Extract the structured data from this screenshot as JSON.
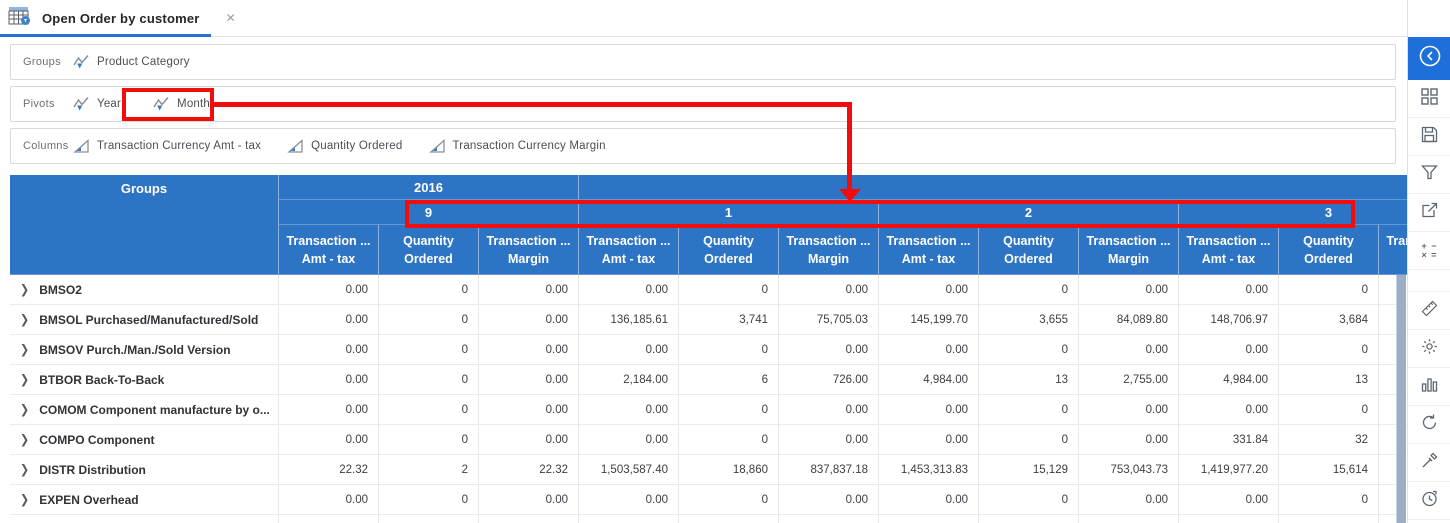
{
  "colors": {
    "header_blue": "#2e74c4",
    "active_blue": "#1e6fd9",
    "annotation_red": "#f20d0d",
    "scrollbar": "#9baec4"
  },
  "tab": {
    "title": "Open Order by customer",
    "close_glyph": "✕",
    "icon": "pivot-table-icon"
  },
  "panels": {
    "groups": {
      "label": "Groups",
      "chips": [
        {
          "label": "Product Category",
          "icon": "dimension-icon"
        }
      ]
    },
    "pivots": {
      "label": "Pivots",
      "chips": [
        {
          "label": "Year",
          "icon": "dimension-icon"
        },
        {
          "label": "Month",
          "icon": "dimension-icon",
          "highlighted": true
        }
      ]
    },
    "columns": {
      "label": "Columns",
      "chips": [
        {
          "label": "Transaction Currency Amt - tax",
          "icon": "measure-icon"
        },
        {
          "label": "Quantity Ordered",
          "icon": "measure-icon"
        },
        {
          "label": "Transaction Currency Margin",
          "icon": "measure-icon"
        }
      ]
    }
  },
  "table": {
    "groups_header": "Groups",
    "years": [
      {
        "label": "2016",
        "month_span": 1
      },
      {
        "label": "",
        "month_span": 3
      }
    ],
    "months": [
      "9",
      "1",
      "2",
      "3"
    ],
    "subcolumns": [
      {
        "line1": "Transaction ...",
        "line2": "Amt - tax"
      },
      {
        "line1": "Quantity",
        "line2": "Ordered"
      },
      {
        "line1": "Transaction ...",
        "line2": "Margin"
      }
    ],
    "rows": [
      {
        "name": "BMSO2",
        "values": [
          "0.00",
          "0",
          "0.00",
          "0.00",
          "0",
          "0.00",
          "0.00",
          "0",
          "0.00",
          "0.00",
          "0"
        ]
      },
      {
        "name": "BMSOL Purchased/Manufactured/Sold",
        "values": [
          "0.00",
          "0",
          "0.00",
          "136,185.61",
          "3,741",
          "75,705.03",
          "145,199.70",
          "3,655",
          "84,089.80",
          "148,706.97",
          "3,684"
        ]
      },
      {
        "name": "BMSOV Purch./Man./Sold Version",
        "values": [
          "0.00",
          "0",
          "0.00",
          "0.00",
          "0",
          "0.00",
          "0.00",
          "0",
          "0.00",
          "0.00",
          "0"
        ]
      },
      {
        "name": "BTBOR Back-To-Back",
        "values": [
          "0.00",
          "0",
          "0.00",
          "2,184.00",
          "6",
          "726.00",
          "4,984.00",
          "13",
          "2,755.00",
          "4,984.00",
          "13"
        ]
      },
      {
        "name": "COMOM Component manufacture by o...",
        "values": [
          "0.00",
          "0",
          "0.00",
          "0.00",
          "0",
          "0.00",
          "0.00",
          "0",
          "0.00",
          "0.00",
          "0"
        ]
      },
      {
        "name": "COMPO Component",
        "values": [
          "0.00",
          "0",
          "0.00",
          "0.00",
          "0",
          "0.00",
          "0.00",
          "0",
          "0.00",
          "331.84",
          "32"
        ]
      },
      {
        "name": "DISTR Distribution",
        "values": [
          "22.32",
          "2",
          "22.32",
          "1,503,587.40",
          "18,860",
          "837,837.18",
          "1,453,313.83",
          "15,129",
          "753,043.73",
          "1,419,977.20",
          "15,614"
        ]
      },
      {
        "name": "EXPEN Overhead",
        "values": [
          "0.00",
          "0",
          "0.00",
          "0.00",
          "0",
          "0.00",
          "0.00",
          "0",
          "0.00",
          "0.00",
          "0"
        ]
      }
    ],
    "expand_glyph": "❯"
  },
  "sidebar": {
    "items_group1": [
      {
        "icon": "chevron-left-circle-icon",
        "name": "collapse-panel",
        "active": true
      },
      {
        "icon": "grid-layout-icon",
        "name": "layouts"
      },
      {
        "icon": "save-icon",
        "name": "save"
      },
      {
        "icon": "filter-icon",
        "name": "filter"
      },
      {
        "icon": "share-icon",
        "name": "share"
      },
      {
        "icon": "calculator-icon",
        "name": "calculated-fields",
        "glyph_line1": "+ −",
        "glyph_line2": "× ="
      }
    ],
    "items_group2": [
      {
        "icon": "ruler-icon",
        "name": "measures"
      },
      {
        "icon": "gear-icon",
        "name": "settings"
      },
      {
        "icon": "bar-chart-icon",
        "name": "chart-view"
      },
      {
        "icon": "refresh-icon",
        "name": "refresh"
      },
      {
        "icon": "eyedropper-icon",
        "name": "picker"
      },
      {
        "icon": "history-icon",
        "name": "history"
      }
    ]
  }
}
